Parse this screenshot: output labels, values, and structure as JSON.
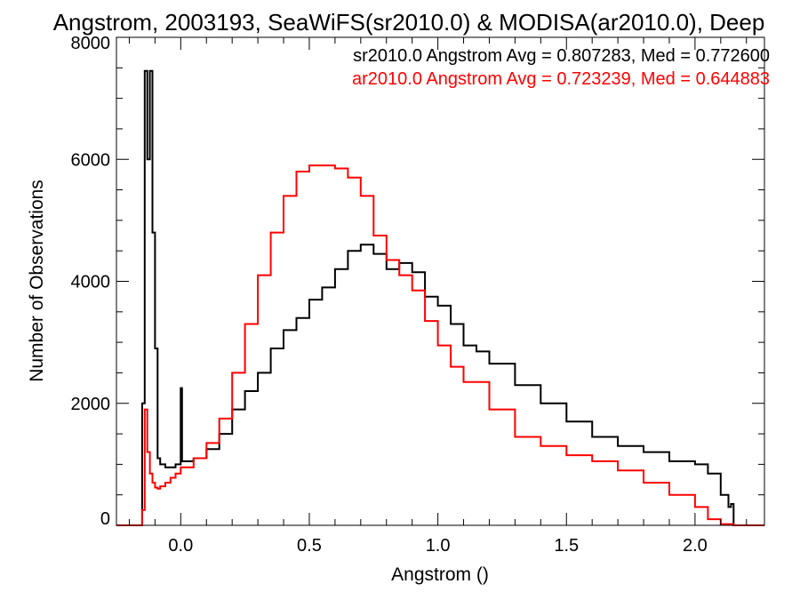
{
  "chart_data": {
    "type": "line",
    "title": "Angstrom, 2003193, SeaWiFS(sr2010.0) & MODISA(ar2010.0), Deep",
    "xlabel": "Angstrom ()",
    "ylabel": "Number of Observations",
    "xlim": [
      -0.25,
      2.27
    ],
    "ylim": [
      0,
      8000
    ],
    "xticks": [
      0.0,
      0.5,
      1.0,
      1.5,
      2.0
    ],
    "xtick_labels": [
      "0.0",
      "0.5",
      "1.0",
      "1.5",
      "2.0"
    ],
    "yticks": [
      0,
      2000,
      4000,
      6000,
      8000
    ],
    "ytick_labels": [
      "0",
      "2000",
      "4000",
      "6000",
      "8000"
    ],
    "grid": false,
    "annotations": [
      {
        "text": "sr2010.0 Angstrom Avg = 0.807283, Med = 0.772600",
        "color": "#000000"
      },
      {
        "text": "ar2010.0 Angstrom Avg = 0.723239, Med = 0.644883",
        "color": "#ff0000"
      }
    ],
    "series": [
      {
        "color": "#000000",
        "x": [
          -0.25,
          -0.16,
          -0.15,
          -0.14,
          -0.13,
          -0.12,
          -0.11,
          -0.1,
          -0.09,
          -0.08,
          -0.06,
          -0.04,
          -0.02,
          -0.005,
          0.0,
          0.005,
          0.02,
          0.05,
          0.1,
          0.15,
          0.2,
          0.25,
          0.3,
          0.35,
          0.4,
          0.45,
          0.5,
          0.55,
          0.6,
          0.65,
          0.7,
          0.75,
          0.8,
          0.85,
          0.9,
          0.95,
          1.0,
          1.05,
          1.1,
          1.15,
          1.2,
          1.3,
          1.4,
          1.5,
          1.6,
          1.7,
          1.8,
          1.9,
          2.0,
          2.05,
          2.1,
          2.13,
          2.14,
          2.15,
          2.27
        ],
        "y": [
          0,
          0,
          2000,
          7450,
          6000,
          7450,
          4800,
          2900,
          1100,
          1000,
          950,
          950,
          1000,
          1000,
          2250,
          1050,
          1050,
          1100,
          1250,
          1500,
          1900,
          2200,
          2500,
          2900,
          3200,
          3400,
          3700,
          3900,
          4200,
          4500,
          4600,
          4450,
          4200,
          4300,
          4150,
          3750,
          3600,
          3300,
          2950,
          2850,
          2650,
          2300,
          2000,
          1700,
          1450,
          1300,
          1200,
          1050,
          1000,
          850,
          500,
          300,
          350,
          0,
          0
        ]
      },
      {
        "color": "#ff0000",
        "x": [
          -0.25,
          -0.16,
          -0.15,
          -0.14,
          -0.13,
          -0.12,
          -0.11,
          -0.1,
          -0.09,
          -0.08,
          -0.06,
          -0.04,
          -0.02,
          0.0,
          0.05,
          0.1,
          0.15,
          0.2,
          0.25,
          0.3,
          0.35,
          0.4,
          0.45,
          0.5,
          0.55,
          0.6,
          0.65,
          0.7,
          0.75,
          0.8,
          0.85,
          0.9,
          0.95,
          1.0,
          1.05,
          1.1,
          1.2,
          1.3,
          1.4,
          1.5,
          1.6,
          1.7,
          1.8,
          1.9,
          2.0,
          2.05,
          2.1,
          2.15,
          2.27
        ],
        "y": [
          0,
          0,
          250,
          1900,
          1200,
          850,
          700,
          620,
          600,
          640,
          700,
          780,
          850,
          950,
          1100,
          1350,
          1750,
          2500,
          3300,
          4100,
          4800,
          5400,
          5800,
          5900,
          5900,
          5850,
          5700,
          5400,
          4750,
          4350,
          4100,
          3850,
          3350,
          2950,
          2600,
          2350,
          1900,
          1450,
          1300,
          1150,
          1050,
          900,
          700,
          500,
          300,
          100,
          20,
          0,
          0
        ]
      }
    ]
  }
}
